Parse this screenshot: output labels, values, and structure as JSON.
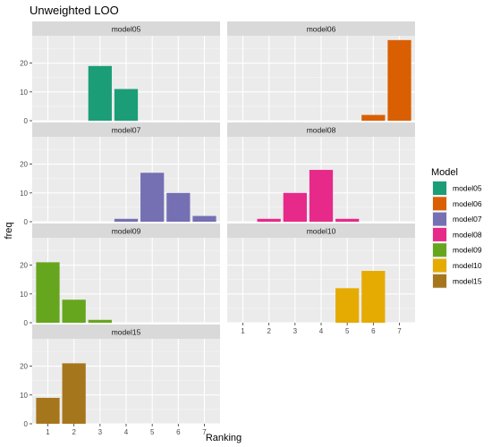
{
  "chart_data": {
    "type": "bar",
    "title": "Unweighted LOO",
    "xlabel": "Ranking",
    "ylabel": "freq",
    "x_ticks": [
      1,
      2,
      3,
      4,
      5,
      6,
      7
    ],
    "y_ticks": [
      0,
      10,
      20
    ],
    "ylim": [
      0,
      29.5
    ],
    "xlim": [
      0.4,
      7.6
    ],
    "grid": true,
    "legend": {
      "title": "Model",
      "placement": "right",
      "entries": [
        "model05",
        "model06",
        "model07",
        "model08",
        "model09",
        "model10",
        "model15"
      ]
    },
    "series": [
      {
        "name": "model05",
        "color": "#1b9e77",
        "x": [
          3,
          4
        ],
        "values": [
          19,
          11
        ]
      },
      {
        "name": "model06",
        "color": "#d95f02",
        "x": [
          6,
          7
        ],
        "values": [
          2,
          28
        ]
      },
      {
        "name": "model07",
        "color": "#7570b3",
        "x": [
          4,
          5,
          6,
          7
        ],
        "values": [
          1,
          17,
          10,
          2
        ]
      },
      {
        "name": "model08",
        "color": "#e7298a",
        "x": [
          2,
          3,
          4,
          5
        ],
        "values": [
          1,
          10,
          18,
          1
        ]
      },
      {
        "name": "model09",
        "color": "#66a61e",
        "x": [
          1,
          2,
          3
        ],
        "values": [
          21,
          8,
          1
        ]
      },
      {
        "name": "model10",
        "color": "#e6ab02",
        "x": [
          5,
          6
        ],
        "values": [
          12,
          18
        ]
      },
      {
        "name": "model15",
        "color": "#a6761d",
        "x": [
          1,
          2
        ],
        "values": [
          9,
          21
        ]
      }
    ]
  }
}
